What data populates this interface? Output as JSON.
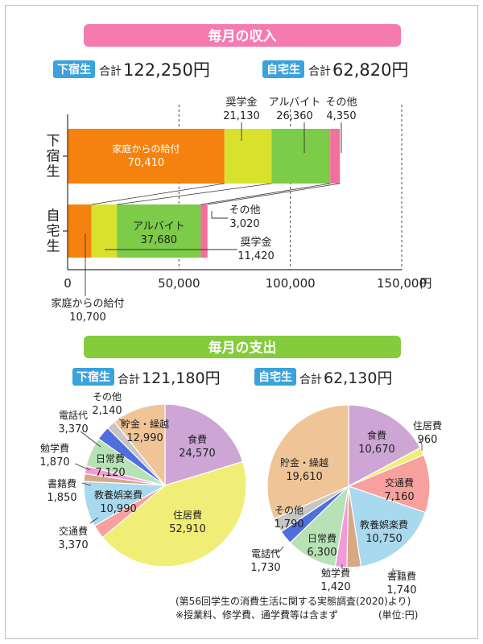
{
  "colors": {
    "income_banner": "#f47ab0",
    "expense_banner": "#85cc3c",
    "badge": "#3aa2dc",
    "family": "#f5820f",
    "scholarship": "#d8e22c",
    "parttime": "#7ccb49",
    "other_income": "#f2709e"
  },
  "income_section": {
    "banner": "毎月の収入",
    "geshuku": {
      "badge": "下宿生",
      "total_prefix": "合計",
      "total_value": "122,250円"
    },
    "jitaku": {
      "badge": "自宅生",
      "total_prefix": "合計",
      "total_value": "62,820円"
    }
  },
  "expense_section": {
    "banner": "毎月の支出",
    "geshuku": {
      "badge": "下宿生",
      "total_prefix": "合計",
      "total_value": " 121,180円"
    },
    "jitaku": {
      "badge": "自宅生",
      "total_prefix": "合計",
      "total_value": " 62,130円"
    }
  },
  "footnote": {
    "source": "(第56回学生の消費生活に関する実態調査(2020)より)",
    "note": "※授業料、修学費、通学費等は含まず",
    "unit": "(単位:円)"
  },
  "chart_data": [
    {
      "type": "bar",
      "orientation": "horizontal",
      "stacked": true,
      "title": "毎月の収入",
      "categories": [
        "下宿生",
        "自宅生"
      ],
      "series": [
        {
          "name": "家庭からの給付",
          "values": [
            70410,
            10700
          ],
          "labels": [
            "70,410",
            "10,700"
          ],
          "color": "#f5820f"
        },
        {
          "name": "奨学金",
          "values": [
            21130,
            11420
          ],
          "labels": [
            "21,130",
            "11,420"
          ],
          "color": "#d8e22c"
        },
        {
          "name": "アルバイト",
          "values": [
            26360,
            37680
          ],
          "labels": [
            "26,360",
            "37,680"
          ],
          "color": "#7ccb49"
        },
        {
          "name": "その他",
          "values": [
            4350,
            3020
          ],
          "labels": [
            "4,350",
            "3,020"
          ],
          "color": "#f2709e"
        }
      ],
      "xlim": [
        0,
        150000
      ],
      "xticks": [
        0,
        50000,
        100000,
        150000
      ],
      "xtick_labels": [
        "0",
        "50,000",
        "100,000",
        "150,000"
      ],
      "x_unit": "円",
      "grid": "dashed vertical"
    },
    {
      "type": "pie",
      "title": "下宿生",
      "slices": [
        {
          "label": "食費",
          "value": 24570,
          "display": "24,570",
          "color": "#cda6d6"
        },
        {
          "label": "住居費",
          "value": 52910,
          "display": "52,910",
          "color": "#f0ee76"
        },
        {
          "label": "交通費",
          "value": 3370,
          "display": "3,370",
          "color": "#f7a09e"
        },
        {
          "label": "教養娯楽費",
          "value": 10990,
          "display": "10,990",
          "color": "#a8d9ee"
        },
        {
          "label": "書籍費",
          "value": 1850,
          "display": "1,850",
          "color": "#d8a783"
        },
        {
          "label": "勉学費",
          "value": 1870,
          "display": "1,870",
          "color": "#f39bd8"
        },
        {
          "label": "日常費",
          "value": 7120,
          "display": "7,120",
          "color": "#b7e2b6"
        },
        {
          "label": "電話代",
          "value": 3370,
          "display": "3,370",
          "color": "#4f6fde"
        },
        {
          "label": "その他",
          "value": 2140,
          "display": "2,140",
          "color": "#c6c6c6"
        },
        {
          "label": "貯金・繰越",
          "value": 12990,
          "display": "12,990",
          "color": "#efc497"
        }
      ]
    },
    {
      "type": "pie",
      "title": "自宅生",
      "slices": [
        {
          "label": "食費",
          "value": 10670,
          "display": "10,670",
          "color": "#cda6d6"
        },
        {
          "label": "住居費",
          "value": 960,
          "display": "960",
          "color": "#f0ee76"
        },
        {
          "label": "交通費",
          "value": 7160,
          "display": "7,160",
          "color": "#f7a09e"
        },
        {
          "label": "教養娯楽費",
          "value": 10750,
          "display": "10,750",
          "color": "#a8d9ee"
        },
        {
          "label": "書籍費",
          "value": 1740,
          "display": "1,740",
          "color": "#d8a783"
        },
        {
          "label": "勉学費",
          "value": 1420,
          "display": "1,420",
          "color": "#f39bd8"
        },
        {
          "label": "日常費",
          "value": 6300,
          "display": "6,300",
          "color": "#b7e2b6"
        },
        {
          "label": "電話代",
          "value": 1730,
          "display": "1,730",
          "color": "#4f6fde"
        },
        {
          "label": "その他",
          "value": 1790,
          "display": "1,790",
          "color": "#c6c6c6"
        },
        {
          "label": "貯金・繰越",
          "value": 19610,
          "display": "19,610",
          "color": "#efc497"
        }
      ]
    }
  ]
}
